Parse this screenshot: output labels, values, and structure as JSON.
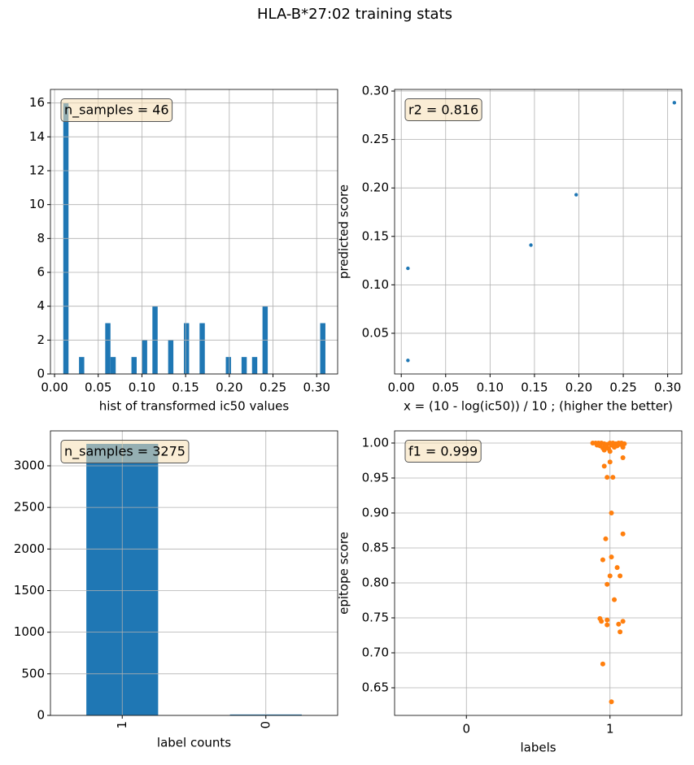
{
  "title": "HLA-B*27:02 training stats",
  "chart_data": [
    {
      "type": "histogram",
      "xlabel": "hist of transformed ic50 values",
      "annotation": "n_samples = 46",
      "color": "#1f77b4",
      "bins": [
        0.01,
        0.016,
        0.022,
        0.028,
        0.034,
        0.04,
        0.046,
        0.052,
        0.058,
        0.064,
        0.07,
        0.076,
        0.082,
        0.088,
        0.094,
        0.1,
        0.106,
        0.112,
        0.118,
        0.124,
        0.13,
        0.136,
        0.142,
        0.148,
        0.154,
        0.16,
        0.166,
        0.172,
        0.178,
        0.184,
        0.19,
        0.196,
        0.202,
        0.208,
        0.214,
        0.22,
        0.226,
        0.232,
        0.238,
        0.244,
        0.25,
        0.256,
        0.262,
        0.268,
        0.274,
        0.28,
        0.286,
        0.292,
        0.298,
        0.304,
        0.31
      ],
      "values": [
        16,
        0,
        0,
        1,
        0,
        0,
        0,
        0,
        3,
        1,
        0,
        0,
        0,
        1,
        0,
        2,
        0,
        4,
        0,
        0,
        2,
        0,
        0,
        3,
        0,
        0,
        3,
        0,
        0,
        0,
        0,
        1,
        0,
        0,
        1,
        0,
        1,
        0,
        4,
        0,
        0,
        0,
        0,
        0,
        0,
        0,
        0,
        0,
        0,
        3
      ],
      "xlim": [
        -0.0047,
        0.324
      ],
      "ylim": [
        0,
        16.8
      ],
      "xticks": [
        {
          "value": 0,
          "label": "0.00"
        },
        0.05,
        {
          "value": 0.1,
          "label": "0.10"
        },
        0.15,
        {
          "value": 0.2,
          "label": "0.20"
        },
        0.25,
        {
          "value": 0.3,
          "label": "0.30"
        }
      ],
      "yticks": [
        0,
        2,
        4,
        6,
        8,
        10,
        12,
        14,
        16
      ],
      "grid": true
    },
    {
      "type": "scatter",
      "xlabel": "x = (10 - log(ic50)) / 10 ; (higher the better)",
      "ylabel": "predicted score",
      "annotation": "r2 = 0.816",
      "color": "#1f77b4",
      "x": [
        0.0075,
        0.0075,
        0.146,
        0.197,
        0.3075
      ],
      "values": [
        0.022,
        0.117,
        0.141,
        0.193,
        0.288
      ],
      "xlim": [
        -0.0075,
        0.3159
      ],
      "ylim": [
        0.008,
        0.3017
      ],
      "xticks": [
        {
          "value": 0,
          "label": "0.00"
        },
        0.05,
        {
          "value": 0.1,
          "label": "0.10"
        },
        0.15,
        {
          "value": 0.2,
          "label": "0.20"
        },
        0.25,
        {
          "value": 0.3,
          "label": "0.30"
        }
      ],
      "yticks": [
        0.05,
        {
          "value": 0.1,
          "label": "0.10"
        },
        0.15,
        {
          "value": 0.2,
          "label": "0.20"
        },
        0.25,
        {
          "value": 0.3,
          "label": "0.30"
        }
      ],
      "grid": true
    },
    {
      "type": "bar",
      "xlabel": "label counts",
      "annotation": "n_samples = 3275",
      "color": "#1f77b4",
      "categories": [
        "1",
        "0"
      ],
      "values": [
        3264,
        11
      ],
      "ylim": [
        0,
        3420
      ],
      "yticks": [
        0,
        500,
        1000,
        1500,
        2000,
        2500,
        3000
      ],
      "grid": true
    },
    {
      "type": "strip",
      "xlabel": "labels",
      "ylabel": "epitope score",
      "annotation": "f1 = 0.999",
      "categories": [
        "0",
        "1"
      ],
      "xlim": [
        -0.5,
        1.5
      ],
      "series": [
        {
          "color": "#ff7f0e",
          "x": [
            0.88,
            0.9,
            0.92,
            0.94,
            0.96,
            0.98,
            1.0,
            1.02,
            1.04,
            1.06,
            1.08,
            1.1,
            0.93,
            0.97,
            1.01,
            1.05,
            1.09,
            0.95,
            0.99,
            1.03,
            1.07,
            0.91,
            0.96,
            1.0,
            1.09,
            1.0,
            0.96,
            0.98,
            1.02,
            1.01,
            1.09,
            0.97,
            1.01,
            0.95,
            1.05,
            1.0,
            1.07,
            0.98,
            1.03,
            0.93,
            0.94,
            1.09,
            0.98,
            1.06,
            0.98,
            1.07,
            0.95,
            1.01
          ],
          "values": [
            1.0,
            1.0,
            1.0,
            1.0,
            0.999,
            0.998,
            1.0,
            1.0,
            0.999,
            1.0,
            1.0,
            0.999,
            0.996,
            0.995,
            0.997,
            0.996,
            0.994,
            0.993,
            0.992,
            0.994,
            0.998,
            0.997,
            0.99,
            0.988,
            0.979,
            0.973,
            0.967,
            0.951,
            0.951,
            0.9,
            0.87,
            0.863,
            0.837,
            0.833,
            0.822,
            0.81,
            0.81,
            0.798,
            0.776,
            0.749,
            0.745,
            0.745,
            0.747,
            0.741,
            0.74,
            0.73,
            0.684,
            0.63
          ]
        }
      ],
      "ylim": [
        0.6105,
        1.0174
      ],
      "yticks": [
        0.65,
        {
          "value": 0.7,
          "label": "0.70"
        },
        0.75,
        {
          "value": 0.8,
          "label": "0.80"
        },
        0.85,
        {
          "value": 0.9,
          "label": "0.90"
        },
        0.95,
        {
          "value": 1,
          "label": "1.00"
        }
      ],
      "grid": true
    }
  ]
}
